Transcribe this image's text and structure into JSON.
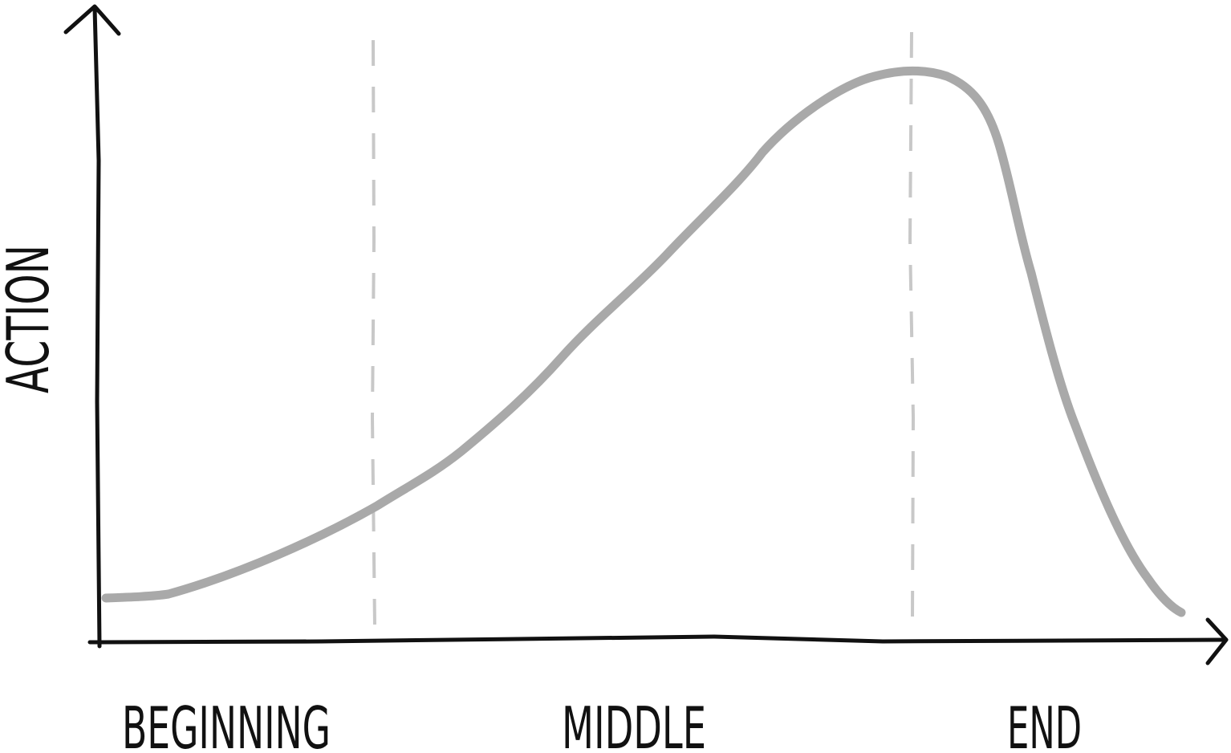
{
  "axis": {
    "y_label": "ACTION"
  },
  "sections": [
    {
      "label": "BEGINNING"
    },
    {
      "label": "MIDDLE"
    },
    {
      "label": "END"
    }
  ]
}
